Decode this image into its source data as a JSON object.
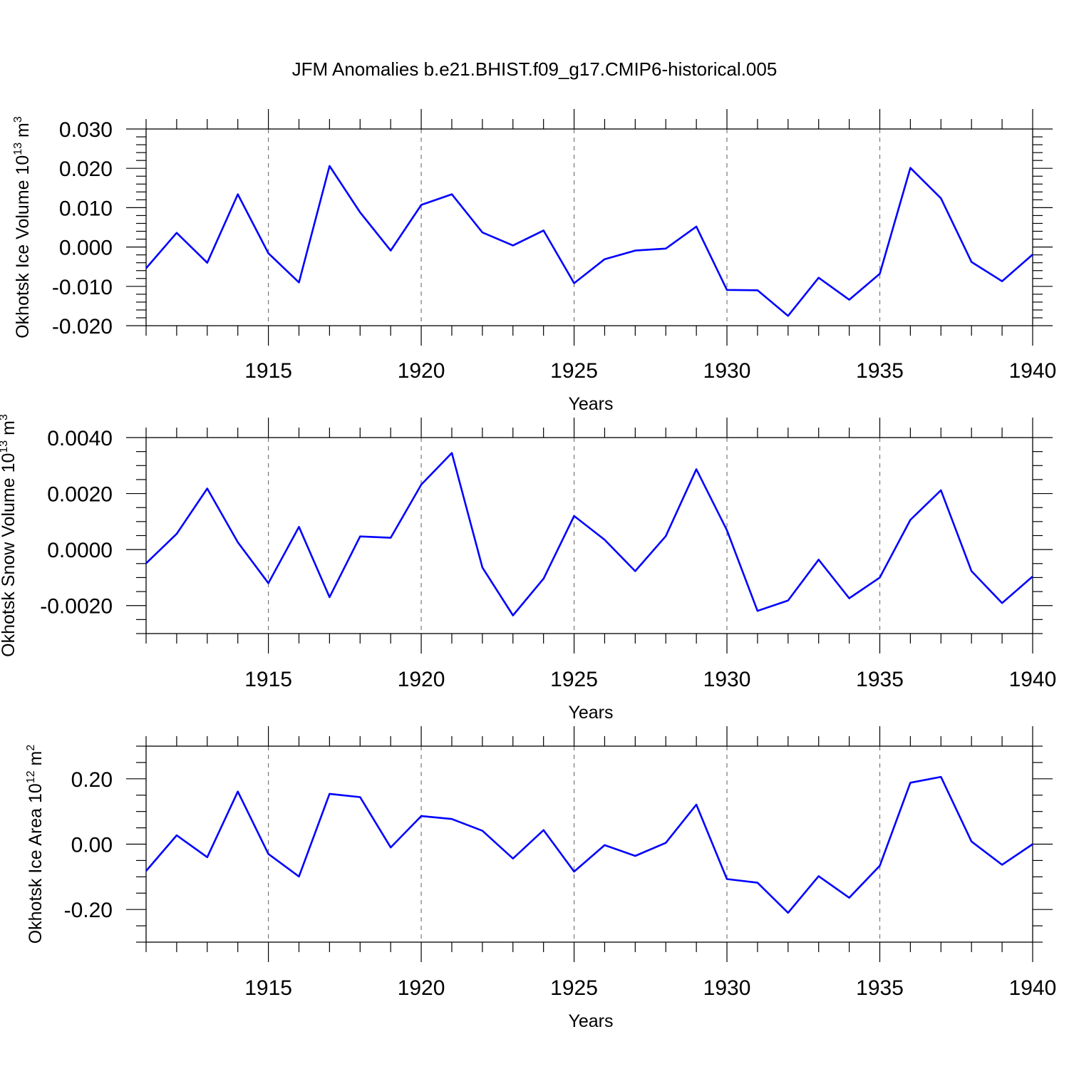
{
  "figure_title": "JFM Anomalies b.e21.BHIST.f09_g17.CMIP6-historical.005",
  "colors": {
    "series": "#0000ff",
    "frame": "#000000",
    "grid": "#777777"
  },
  "chart_data": [
    {
      "type": "line",
      "xlabel": "Years",
      "ylabel": {
        "text": "Okhotsk Ice Volume 10",
        "exp": "13",
        "unit": " m",
        "unit_exp": "3"
      },
      "xlim": [
        1911,
        1940
      ],
      "ylim": [
        -0.02,
        0.03
      ],
      "xticks": [
        1915,
        1920,
        1925,
        1930,
        1935,
        1940
      ],
      "yticks": [
        -0.02,
        -0.01,
        0.0,
        0.01,
        0.02,
        0.03
      ],
      "ytick_labels": [
        "-0.020",
        "-0.010",
        "0.000",
        "0.010",
        "0.020",
        "0.030"
      ],
      "y_minor_step": 0.002,
      "grid": "vertical dashed at major x ticks",
      "x": [
        1911,
        1912,
        1913,
        1914,
        1915,
        1916,
        1917,
        1918,
        1919,
        1920,
        1921,
        1922,
        1923,
        1924,
        1925,
        1926,
        1927,
        1928,
        1929,
        1930,
        1931,
        1932,
        1933,
        1934,
        1935,
        1936,
        1937,
        1938,
        1939,
        1940
      ],
      "values": [
        -0.0054,
        0.0036,
        -0.004,
        0.0134,
        -0.0016,
        -0.009,
        0.0206,
        0.0088,
        -0.0009,
        0.0107,
        0.0134,
        0.0037,
        0.0004,
        0.0042,
        -0.0092,
        -0.0031,
        -0.0009,
        -0.0004,
        0.0052,
        -0.0109,
        -0.011,
        -0.0175,
        -0.0078,
        -0.0134,
        -0.0068,
        0.0201,
        0.0124,
        -0.0038,
        -0.0087,
        -0.0019
      ]
    },
    {
      "type": "line",
      "xlabel": "Years",
      "ylabel": {
        "text": "Okhotsk Snow Volume 10",
        "exp": "13",
        "unit": " m",
        "unit_exp": "3"
      },
      "xlim": [
        1911,
        1940
      ],
      "ylim": [
        -0.003,
        0.004
      ],
      "xticks": [
        1915,
        1920,
        1925,
        1930,
        1935,
        1940
      ],
      "yticks": [
        -0.002,
        0.0,
        0.002,
        0.004
      ],
      "ytick_labels": [
        "-0.0020",
        "0.0000",
        "0.0020",
        "0.0040"
      ],
      "y_minor_step": 0.0005,
      "grid": "vertical dashed at major x ticks",
      "x": [
        1911,
        1912,
        1913,
        1914,
        1915,
        1916,
        1917,
        1918,
        1919,
        1920,
        1921,
        1922,
        1923,
        1924,
        1925,
        1926,
        1927,
        1928,
        1929,
        1930,
        1931,
        1932,
        1933,
        1934,
        1935,
        1936,
        1937,
        1938,
        1939,
        1940
      ],
      "values": [
        -0.00049,
        0.00056,
        0.00218,
        0.00026,
        -0.0012,
        0.00081,
        -0.0017,
        0.00047,
        0.00042,
        0.00232,
        0.00345,
        -0.00064,
        -0.00235,
        -0.00104,
        0.0012,
        0.00035,
        -0.00077,
        0.00048,
        0.00287,
        0.00069,
        -0.00219,
        -0.00182,
        -0.00036,
        -0.00174,
        -0.001,
        0.00106,
        0.00212,
        -0.00077,
        -0.00191,
        -0.00096
      ]
    },
    {
      "type": "line",
      "xlabel": "Years",
      "ylabel": {
        "text": "Okhotsk Ice Area 10",
        "exp": "12",
        "unit": " m",
        "unit_exp": "2"
      },
      "xlim": [
        1911,
        1940
      ],
      "ylim": [
        -0.3,
        0.3
      ],
      "xticks": [
        1915,
        1920,
        1925,
        1930,
        1935,
        1940
      ],
      "yticks": [
        -0.2,
        0.0,
        0.2
      ],
      "ytick_labels": [
        "-0.20",
        "0.00",
        "0.20"
      ],
      "y_minor_step": 0.05,
      "grid": "vertical dashed at major x ticks",
      "x": [
        1911,
        1912,
        1913,
        1914,
        1915,
        1916,
        1917,
        1918,
        1919,
        1920,
        1921,
        1922,
        1923,
        1924,
        1925,
        1926,
        1927,
        1928,
        1929,
        1930,
        1931,
        1932,
        1933,
        1934,
        1935,
        1936,
        1937,
        1938,
        1939,
        1940
      ],
      "values": [
        -0.082,
        0.027,
        -0.04,
        0.161,
        -0.03,
        -0.099,
        0.154,
        0.144,
        -0.01,
        0.086,
        0.077,
        0.041,
        -0.044,
        0.043,
        -0.084,
        -0.003,
        -0.036,
        0.004,
        0.121,
        -0.107,
        -0.118,
        -0.21,
        -0.098,
        -0.164,
        -0.066,
        0.188,
        0.206,
        0.008,
        -0.063,
        0.0
      ]
    }
  ]
}
